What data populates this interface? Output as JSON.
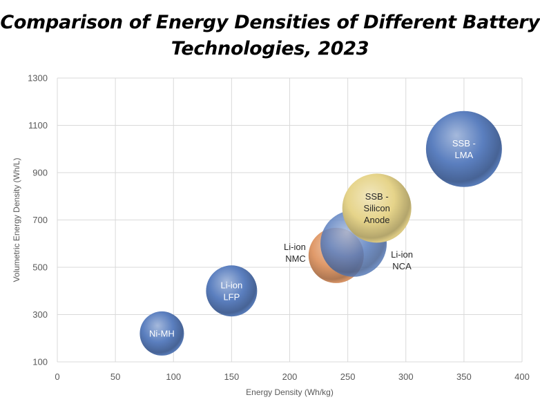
{
  "chart_data": {
    "type": "scatter",
    "subtype": "bubble",
    "title_lines": [
      "Comparison of Energy Densities of Different Battery",
      "Technologies, 2023"
    ],
    "xlabel": "Energy Density (Wh/kg)",
    "ylabel": "Volumetric Energy Density (Wh/L)",
    "xlim": [
      0,
      400
    ],
    "ylim": [
      100,
      1300
    ],
    "xticks": [
      0,
      50,
      100,
      150,
      200,
      250,
      300,
      350,
      400
    ],
    "yticks": [
      100,
      300,
      500,
      700,
      900,
      1100,
      1300
    ],
    "grid": true,
    "legend": "none",
    "series": [
      {
        "name": "Ni-MH",
        "label_lines": [
          "Ni-MH"
        ],
        "x": 90,
        "y": 220,
        "size": 32,
        "color": "#5b7fbf",
        "label_color": "#ffffff",
        "label_position": "center"
      },
      {
        "name": "Li-ion LFP",
        "label_lines": [
          "Li-ion",
          "LFP"
        ],
        "x": 150,
        "y": 400,
        "size": 37,
        "color": "#5b7fbf",
        "label_color": "#ffffff",
        "label_position": "center"
      },
      {
        "name": "Li-ion NMC",
        "label_lines": [
          "Li-ion",
          "NMC"
        ],
        "x": 240,
        "y": 550,
        "size": 40,
        "color": "#e09a6a",
        "label_color": "#262626",
        "label_position": "left"
      },
      {
        "name": "Li-ion NCA",
        "label_lines": [
          "Li-ion",
          "NCA"
        ],
        "x": 255,
        "y": 600,
        "size": 48,
        "color": "#5b7fbf",
        "label_color": "#262626",
        "label_position": "right-below"
      },
      {
        "name": "SSB - Silicon Anode",
        "label_lines": [
          "SSB -",
          "Silicon",
          "Anode"
        ],
        "x": 275,
        "y": 750,
        "size": 50,
        "color": "#e6d48a",
        "label_color": "#262626",
        "label_position": "center"
      },
      {
        "name": "SSB - LMA",
        "label_lines": [
          "SSB -",
          "LMA"
        ],
        "x": 350,
        "y": 1000,
        "size": 55,
        "color": "#5b7fbf",
        "label_color": "#ffffff",
        "label_position": "center"
      }
    ]
  }
}
